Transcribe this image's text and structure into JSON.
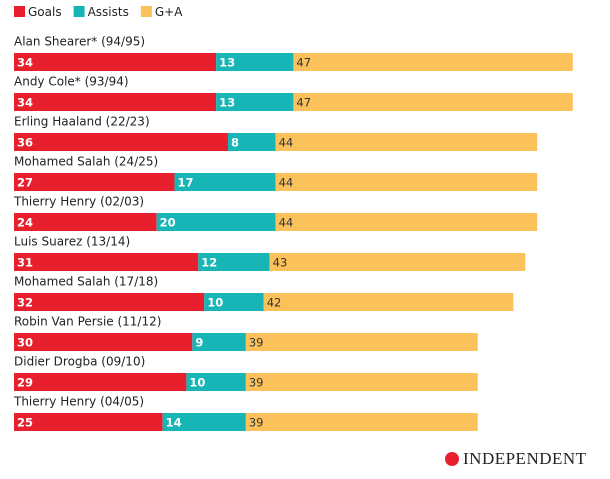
{
  "chart_data": {
    "type": "stacked-bar-horizontal",
    "categories": [
      "Alan Shearer* (94/95)",
      "Andy Cole* (93/94)",
      "Erling Haaland (22/23)",
      "Mohamed Salah (24/25)",
      "Thierry Henry (02/03)",
      "Luis Suarez (13/14)",
      "Mohamed Salah (17/18)",
      "Robin Van Persie (11/12)",
      "Didier Drogba (09/10)",
      "Thierry Henry (04/05)"
    ],
    "series": [
      {
        "name": "Goals",
        "color": "#e8202e",
        "values": [
          34,
          34,
          36,
          27,
          24,
          31,
          32,
          30,
          29,
          25
        ]
      },
      {
        "name": "Assists",
        "color": "#17b5b5",
        "values": [
          13,
          13,
          8,
          17,
          20,
          12,
          10,
          9,
          10,
          14
        ]
      },
      {
        "name": "G+A",
        "color": "#fbc25c",
        "values": [
          47,
          47,
          44,
          44,
          44,
          43,
          42,
          39,
          39,
          39
        ]
      }
    ],
    "legend": "top-left",
    "source_logo": "INDEPENDENT"
  }
}
